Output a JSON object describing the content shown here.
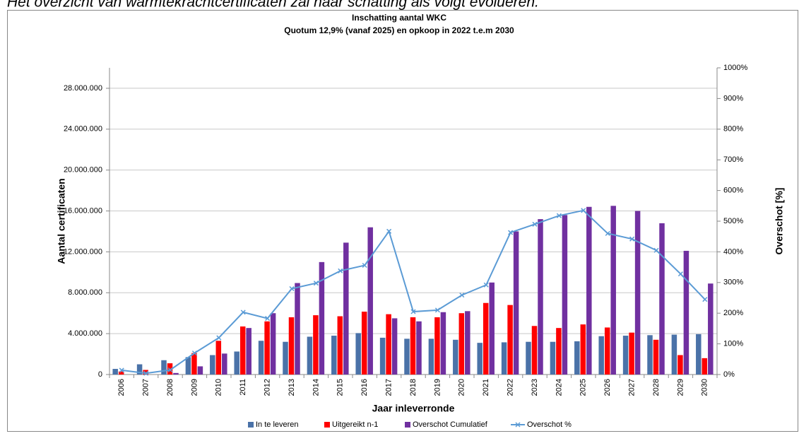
{
  "intro": "Het overzicht van warmtekrachtcertificaten zal naar schatting als volgt evolueren.",
  "chart_data": {
    "type": "bar",
    "title": "Inschatting aantal WKC",
    "subtitle": "Quotum 12,9% (vanaf 2025) en opkoop in 2022 t.e.m 2030",
    "y_label": "Aantal certificaten",
    "y2_label": "Overschot [%]",
    "x_label": "Jaar inleverronde",
    "categories": [
      "2006",
      "2007",
      "2008",
      "2009",
      "2010",
      "2011",
      "2012",
      "2013",
      "2014",
      "2015",
      "2016",
      "2017",
      "2018",
      "2019",
      "2020",
      "2021",
      "2022",
      "2023",
      "2024",
      "2025",
      "2026",
      "2027",
      "2028",
      "2029",
      "2030"
    ],
    "series": [
      {
        "name": "In te leveren",
        "type": "bar",
        "color": "#4a72a8",
        "values": [
          550000,
          1000000,
          1400000,
          1700000,
          1900000,
          2250000,
          3300000,
          3200000,
          3700000,
          3800000,
          4050000,
          3600000,
          3500000,
          3500000,
          3400000,
          3100000,
          3150000,
          3200000,
          3200000,
          3250000,
          3750000,
          3800000,
          3850000,
          3900000,
          3950000
        ]
      },
      {
        "name": "Uitgereikt n-1",
        "type": "bar",
        "color": "#ff0000",
        "values": [
          300000,
          450000,
          1100000,
          2100000,
          3300000,
          4700000,
          5200000,
          5600000,
          5800000,
          5700000,
          6150000,
          5900000,
          5600000,
          5600000,
          6000000,
          7000000,
          6800000,
          4750000,
          4550000,
          4900000,
          4600000,
          4100000,
          3400000,
          1900000,
          1600000
        ]
      },
      {
        "name": "Overschot Cumulatief",
        "type": "bar",
        "color": "#7030a0",
        "values": [
          0,
          0,
          150000,
          800000,
          2050000,
          4550000,
          6000000,
          8950000,
          11000000,
          12900000,
          14400000,
          5500000,
          5200000,
          6100000,
          6200000,
          9000000,
          14000000,
          15200000,
          15600000,
          16400000,
          16500000,
          16000000,
          14800000,
          12100000,
          8900000
        ]
      },
      {
        "name": "Overschot %",
        "type": "line",
        "axis": "y2",
        "color": "#5b9bd5",
        "values": [
          14,
          4,
          15,
          70,
          120,
          203,
          183,
          280,
          298,
          338,
          356,
          467,
          205,
          210,
          259,
          292,
          463,
          490,
          518,
          535,
          460,
          442,
          405,
          328,
          245
        ]
      }
    ],
    "ylim": [
      0,
      30000000
    ],
    "yticks": [
      0,
      {
        "value": 4000000,
        "label": "4.000.000"
      },
      {
        "value": 8000000,
        "label": "8.000.000"
      },
      {
        "value": 12000000,
        "label": "12.000.000"
      },
      {
        "value": 16000000,
        "label": "16.000.000"
      },
      {
        "value": 20000000,
        "label": "20.000.000"
      },
      {
        "value": 24000000,
        "label": "24.000.000"
      },
      {
        "value": 28000000,
        "label": "28.000.000"
      }
    ],
    "y2lim": [
      0,
      1000
    ],
    "y2ticks": [
      {
        "value": 0,
        "label": "0%"
      },
      {
        "value": 100,
        "label": "100%"
      },
      {
        "value": 200,
        "label": "200%"
      },
      {
        "value": 300,
        "label": "300%"
      },
      {
        "value": 400,
        "label": "400%"
      },
      {
        "value": 500,
        "label": "500%"
      },
      {
        "value": 600,
        "label": "600%"
      },
      {
        "value": 700,
        "label": "700%"
      },
      {
        "value": 800,
        "label": "800%"
      },
      {
        "value": 900,
        "label": "900%"
      },
      {
        "value": 1000,
        "label": "1000%"
      }
    ],
    "grid": true,
    "legend": "bottom"
  }
}
